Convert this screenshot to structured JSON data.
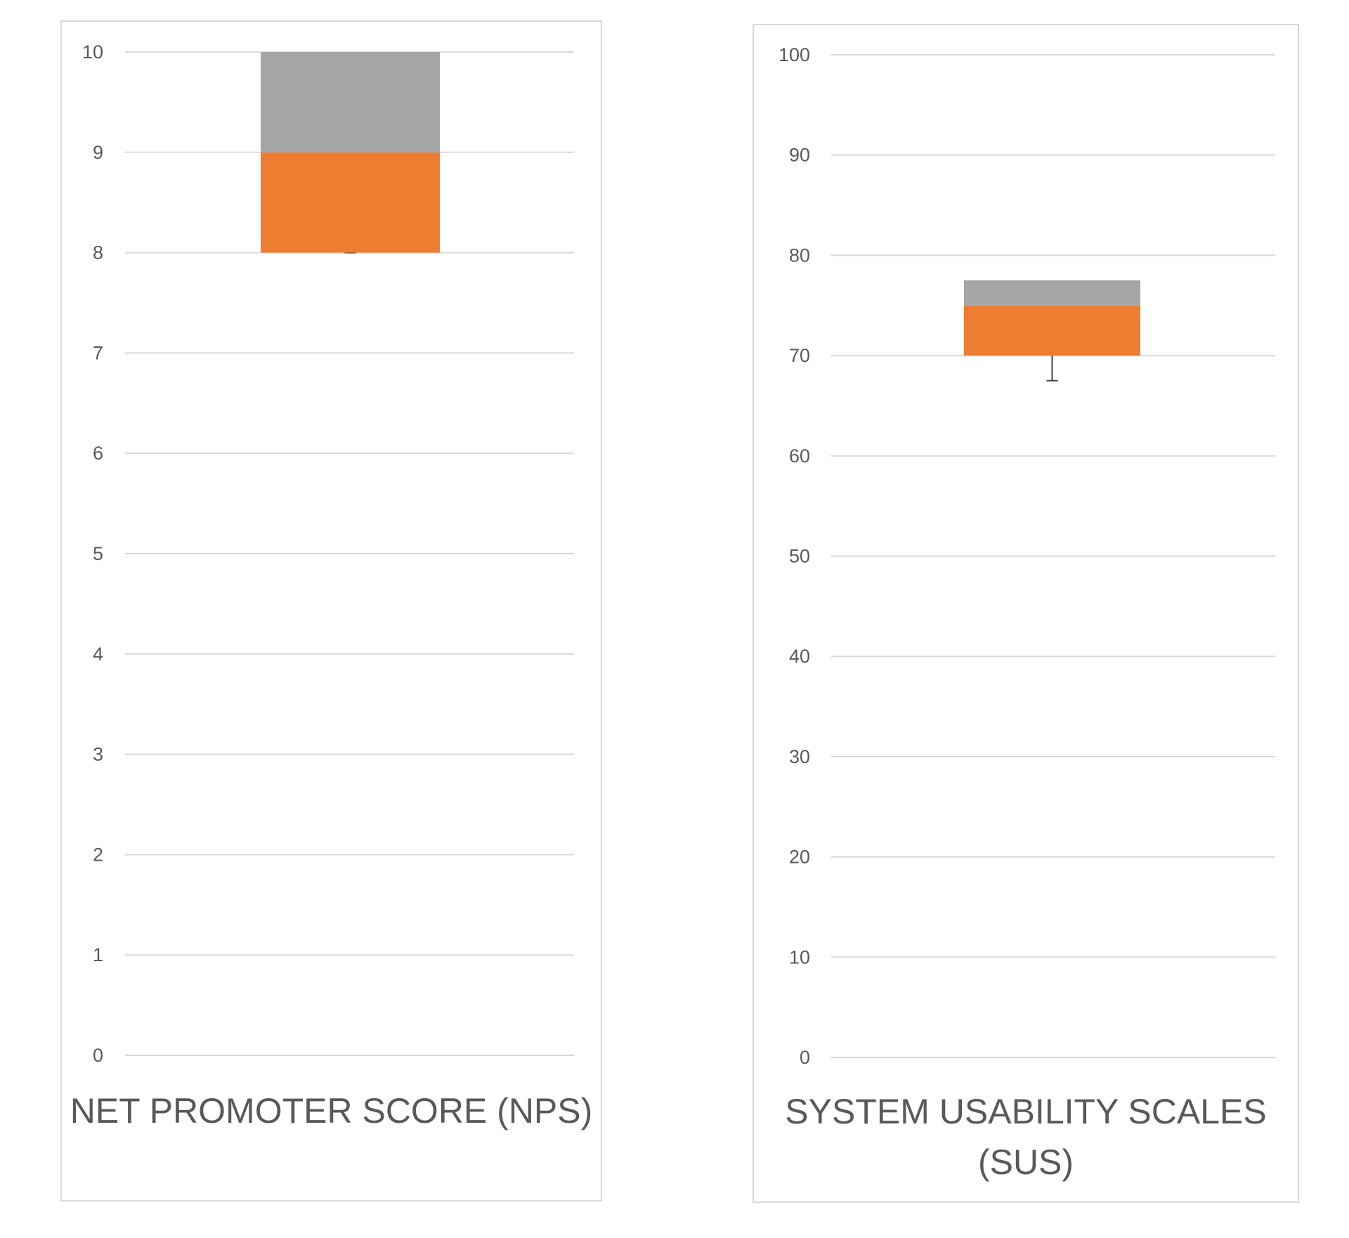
{
  "colors": {
    "lower_box": "#ED7D31",
    "upper_box": "#A5A5A5",
    "gridline": "#d9d9d9",
    "whisker": "#404040",
    "text": "#595959"
  },
  "chart_data": [
    {
      "type": "box",
      "title": "",
      "xlabel": "",
      "ylabel": "",
      "categories": [
        "NET PROMOTER SCORE (NPS)"
      ],
      "ylim": [
        0,
        10
      ],
      "yticks": [
        "0",
        "1",
        "2",
        "3",
        "4",
        "5",
        "6",
        "7",
        "8",
        "9",
        "10"
      ],
      "grid": true,
      "legend": "none",
      "series": [
        {
          "q1": 8,
          "median": 9,
          "q3": 10,
          "whisker_low": 8,
          "whisker_high": 10
        }
      ]
    },
    {
      "type": "box",
      "title": "",
      "xlabel": "",
      "ylabel": "",
      "categories": [
        "SYSTEM USABILITY SCALES (SUS)"
      ],
      "ylim": [
        0,
        100
      ],
      "yticks": [
        "0",
        "10",
        "20",
        "30",
        "40",
        "50",
        "60",
        "70",
        "80",
        "90",
        "100"
      ],
      "grid": true,
      "legend": "none",
      "series": [
        {
          "q1": 70,
          "median": 75,
          "q3": 77.5,
          "whisker_low": 67.5,
          "whisker_high": 77.5
        }
      ]
    }
  ]
}
